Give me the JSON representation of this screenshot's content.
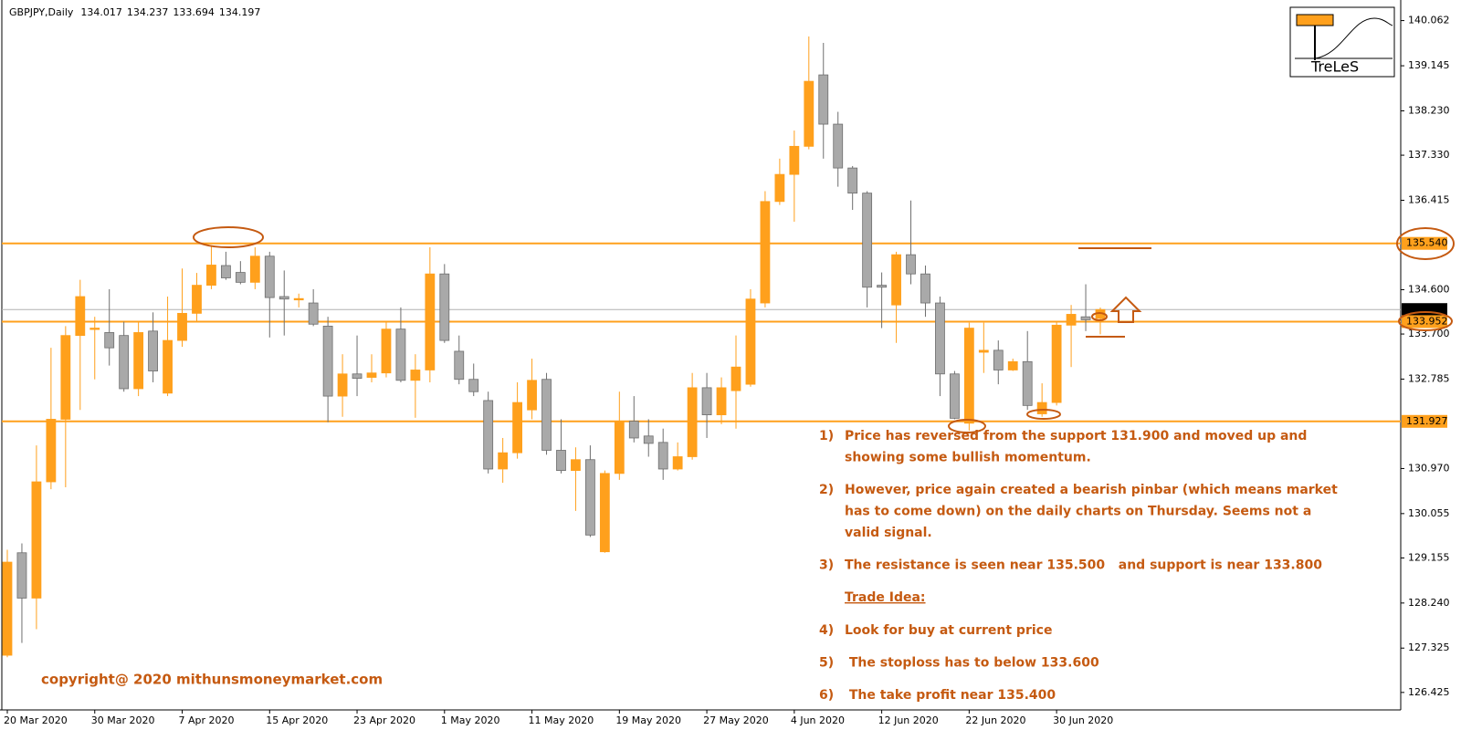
{
  "chart_data": {
    "type": "candlestick",
    "symbol": "GBPJPY,Daily",
    "categories": [
      "20 Mar 2020",
      null,
      null,
      null,
      null,
      null,
      "30 Mar 2020",
      null,
      null,
      null,
      null,
      null,
      "7 Apr 2020",
      null,
      null,
      null,
      null,
      null,
      "15 Apr 2020",
      null,
      null,
      null,
      null,
      null,
      "23 Apr 2020",
      null,
      null,
      null,
      null,
      null,
      "1 May 2020",
      null,
      null,
      null,
      null,
      null,
      "11 May 2020",
      null,
      null,
      null,
      null,
      null,
      "19 May 2020",
      null,
      null,
      null,
      null,
      null,
      "27 May 2020",
      null,
      null,
      null,
      null,
      null,
      "4 Jun 2020",
      null,
      null,
      null,
      null,
      null,
      "12 Jun 2020",
      null,
      null,
      null,
      null,
      null,
      "22 Jun 2020",
      null,
      null,
      null,
      null,
      null,
      "30 Jun 2020",
      null,
      null,
      null
    ],
    "open": [
      127.18,
      129.26,
      128.34,
      130.7,
      131.97,
      133.67,
      133.8,
      133.73,
      133.67,
      132.59,
      133.76,
      132.5,
      133.57,
      134.12,
      134.69,
      135.09,
      134.95,
      134.75,
      135.28,
      134.46,
      134.41,
      134.33,
      133.86,
      132.44,
      132.89,
      132.82,
      132.91,
      133.8,
      132.76,
      132.97,
      134.92,
      133.35,
      132.78,
      132.35,
      130.96,
      131.29,
      132.16,
      132.78,
      131.34,
      130.93,
      131.15,
      129.28,
      130.87,
      131.93,
      131.63,
      131.5,
      130.96,
      131.21,
      132.61,
      132.06,
      132.55,
      132.68,
      134.33,
      136.39,
      136.94,
      137.51,
      138.96,
      137.96,
      137.07,
      136.56,
      134.69,
      134.29,
      135.31,
      134.92,
      134.33,
      132.89,
      131.89,
      133.33,
      133.37,
      132.97,
      133.14,
      132.08,
      132.31,
      133.88,
      134.05,
      134.017
    ],
    "high": [
      129.32,
      129.45,
      131.44,
      133.42,
      133.86,
      134.8,
      134.05,
      134.61,
      133.95,
      133.95,
      134.14,
      134.46,
      135.03,
      134.94,
      135.5,
      135.37,
      135.18,
      135.46,
      135.37,
      134.99,
      134.52,
      134.61,
      134.05,
      133.29,
      133.67,
      133.29,
      133.95,
      134.24,
      133.29,
      135.46,
      135.12,
      133.67,
      133.1,
      132.53,
      131.59,
      132.72,
      133.2,
      132.91,
      131.97,
      131.4,
      131.44,
      130.93,
      132.53,
      132.44,
      131.97,
      131.78,
      131.5,
      132.91,
      132.91,
      132.82,
      133.67,
      134.61,
      136.6,
      137.26,
      137.83,
      139.74,
      139.61,
      138.21,
      137.11,
      136.6,
      134.95,
      135.37,
      136.41,
      135.09,
      134.46,
      132.95,
      133.93,
      133.93,
      133.57,
      133.2,
      133.76,
      132.7,
      133.95,
      134.29,
      134.71,
      134.237
    ],
    "low": [
      127.14,
      127.43,
      127.71,
      130.55,
      130.59,
      132.16,
      132.78,
      133.06,
      132.53,
      132.44,
      132.72,
      132.44,
      133.44,
      133.95,
      134.61,
      134.8,
      134.71,
      134.61,
      133.63,
      133.67,
      134.24,
      133.86,
      131.91,
      132.02,
      132.44,
      132.72,
      132.82,
      132.72,
      132.0,
      132.72,
      133.52,
      132.68,
      132.44,
      130.87,
      130.68,
      131.17,
      131.97,
      131.25,
      130.87,
      130.11,
      129.58,
      129.26,
      130.74,
      131.5,
      131.21,
      130.74,
      130.93,
      131.15,
      131.59,
      131.87,
      131.78,
      132.63,
      134.24,
      136.32,
      135.98,
      137.45,
      137.26,
      136.69,
      136.22,
      134.24,
      133.82,
      133.52,
      134.71,
      134.05,
      132.44,
      131.97,
      131.74,
      132.91,
      132.68,
      132.95,
      132.16,
      132.02,
      132.25,
      133.03,
      133.76,
      133.694
    ],
    "close": [
      129.07,
      128.34,
      130.7,
      131.97,
      133.67,
      134.46,
      133.82,
      133.42,
      132.59,
      133.73,
      132.95,
      133.57,
      134.12,
      134.69,
      135.1,
      134.84,
      134.75,
      135.28,
      134.44,
      134.41,
      134.42,
      133.9,
      132.44,
      132.89,
      132.8,
      132.91,
      133.8,
      132.76,
      132.97,
      134.92,
      133.57,
      132.78,
      132.53,
      130.96,
      131.29,
      132.31,
      132.76,
      131.34,
      130.93,
      131.15,
      129.62,
      130.87,
      131.93,
      131.59,
      131.48,
      130.96,
      131.21,
      132.61,
      132.06,
      132.61,
      133.03,
      134.41,
      136.39,
      136.94,
      137.51,
      138.83,
      137.96,
      137.07,
      136.56,
      134.65,
      134.65,
      135.31,
      134.92,
      134.33,
      132.89,
      131.99,
      133.82,
      133.37,
      132.97,
      133.14,
      132.25,
      132.31,
      133.88,
      134.1,
      133.99,
      134.197
    ],
    "up_color": "#ffa01c",
    "down_color": "#a9a9a9",
    "ylim": [
      126.07,
      140.48
    ],
    "yticks": [
      140.062,
      139.145,
      {
        "value": 138.23,
        "label": "138.230"
      },
      {
        "value": 137.33,
        "label": "137.330"
      },
      136.415,
      {
        "value": 134.6,
        "label": "134.600"
      },
      {
        "value": 133.7,
        "label": "133.700"
      },
      132.785,
      {
        "value": 130.97,
        "label": "130.970"
      },
      130.055,
      129.155,
      {
        "value": 128.24,
        "label": "128.240"
      },
      127.325,
      126.425
    ],
    "levels": [
      {
        "value": 135.54,
        "label": "135.540",
        "color": "#ffa01c"
      },
      {
        "value": 133.952,
        "label": "133.952",
        "color": "#ffa01c"
      },
      {
        "value": 131.927,
        "label": "131.927",
        "color": "#ffa01c"
      }
    ],
    "current_price_color": "#b0b0b0",
    "logo": "TreLeS",
    "notes": [
      {
        "num": "1)",
        "lines": [
          "Price has reversed from the support 131.900 and moved up and",
          "showing some bullish momentum."
        ]
      },
      {
        "num": "2)",
        "lines": [
          "However, price again created a bearish pinbar (which means market",
          "has to come down) on the daily charts on Thursday. Seems not a",
          "valid signal."
        ]
      },
      {
        "num": "3)",
        "lines": [
          "The resistance is seen near 135.500   and support is near 133.800"
        ]
      },
      {
        "heading": "Trade Idea:"
      },
      {
        "num": "4)",
        "lines": [
          "Look for buy at current price"
        ]
      },
      {
        "num": "5)",
        "lines": [
          " The stoploss has to below 133.600"
        ]
      },
      {
        "num": "6)",
        "lines": [
          " The take profit near 135.400"
        ]
      }
    ],
    "copyright": "copyright@ 2020 mithunsmoneymarket.com"
  }
}
